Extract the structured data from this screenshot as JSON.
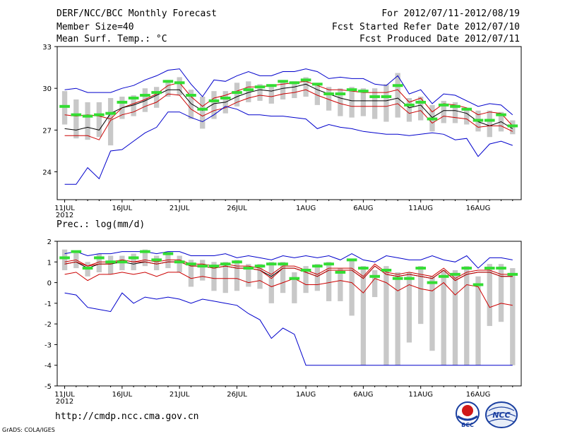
{
  "header": {
    "title": "DERF/NCC/BCC Monthly Forecast",
    "member_size": "Member Size=40",
    "variable": "Mean Surf. Temp.: °C",
    "period": "For 2012/07/11-2012/08/19",
    "started": "Fcst Started Refer Date 2012/07/10",
    "produced": "Fcst Produced Date 2012/07/11"
  },
  "footer": {
    "url": "http://cmdp.ncc.cma.gov.cn",
    "grads": "GrADS: COLA/IGES",
    "logo_bcc": "BCC",
    "logo_ncc": "NCC"
  },
  "colors": {
    "max_min": "#0000cc",
    "spread": "#cc0000",
    "mean": "#000000",
    "median": "#33dd33",
    "box": "#c8c8c8"
  },
  "chart_data": [
    {
      "type": "line",
      "title": "Mean Surf. Temp.: °C",
      "ylabel": "°C",
      "ylim": [
        22,
        33
      ],
      "yticks": [
        24,
        27,
        30,
        33
      ],
      "xtick_labels": [
        "11JUL",
        "16JUL",
        "21JUL",
        "26JUL",
        "1AUG",
        "6AUG",
        "11AUG",
        "16AUG"
      ],
      "xtick_days": [
        1,
        6,
        11,
        16,
        22,
        27,
        32,
        37
      ],
      "xtick_sublabel": "2012",
      "days": 40,
      "series": [
        {
          "name": "max",
          "values": [
            29.9,
            30.0,
            29.7,
            29.7,
            29.7,
            30.0,
            30.2,
            30.6,
            30.9,
            31.3,
            31.4,
            30.3,
            29.4,
            30.6,
            30.5,
            30.9,
            31.2,
            30.9,
            30.9,
            31.2,
            31.2,
            31.4,
            31.2,
            30.7,
            30.8,
            30.7,
            30.7,
            30.3,
            30.2,
            30.9,
            29.6,
            29.9,
            28.9,
            29.6,
            29.5,
            29.1,
            28.7,
            28.9,
            28.8,
            28.1
          ]
        },
        {
          "name": "upper",
          "values": [
            28.1,
            28.0,
            28.1,
            28.0,
            27.8,
            28.6,
            28.9,
            29.2,
            29.6,
            30.2,
            30.4,
            29.4,
            28.7,
            29.3,
            29.5,
            29.8,
            30.1,
            30.1,
            30.2,
            30.3,
            30.4,
            30.5,
            30.2,
            29.9,
            29.9,
            29.8,
            29.7,
            29.7,
            29.7,
            29.9,
            29.0,
            29.3,
            28.3,
            28.9,
            28.8,
            28.6,
            28.1,
            28.3,
            28.2,
            27.3
          ]
        },
        {
          "name": "mean",
          "values": [
            27.1,
            27.0,
            27.2,
            27.0,
            28.2,
            28.6,
            28.8,
            29.1,
            29.5,
            29.9,
            29.9,
            28.9,
            28.4,
            28.9,
            29.0,
            29.4,
            29.7,
            29.9,
            29.8,
            30.0,
            30.1,
            30.3,
            29.9,
            29.6,
            29.3,
            29.1,
            29.1,
            29.1,
            29.1,
            29.3,
            28.6,
            28.8,
            27.9,
            28.4,
            28.4,
            28.2,
            27.6,
            27.3,
            27.6,
            27.1
          ]
        },
        {
          "name": "lower",
          "values": [
            26.6,
            26.6,
            26.6,
            26.3,
            27.7,
            28.1,
            28.3,
            28.7,
            29.0,
            29.6,
            29.5,
            28.5,
            28.0,
            28.4,
            28.6,
            29.0,
            29.3,
            29.5,
            29.4,
            29.6,
            29.7,
            29.9,
            29.5,
            29.2,
            28.9,
            28.7,
            28.7,
            28.7,
            28.7,
            28.9,
            28.2,
            28.4,
            27.5,
            28.0,
            27.9,
            27.8,
            27.2,
            27.3,
            27.3,
            26.9
          ]
        },
        {
          "name": "min",
          "values": [
            23.1,
            23.1,
            24.3,
            23.5,
            25.5,
            25.6,
            26.2,
            26.8,
            27.2,
            28.3,
            28.3,
            27.9,
            27.6,
            28.1,
            28.7,
            28.5,
            28.1,
            28.1,
            28.0,
            28.0,
            27.9,
            27.8,
            27.1,
            27.4,
            27.2,
            27.1,
            26.9,
            26.8,
            26.7,
            26.7,
            26.6,
            26.7,
            26.8,
            26.7,
            26.3,
            26.4,
            25.1,
            26.0,
            26.2,
            25.9
          ]
        },
        {
          "name": "median",
          "values": [
            28.7,
            28.1,
            28.0,
            28.1,
            28.2,
            29.0,
            29.3,
            29.5,
            29.7,
            30.5,
            30.4,
            29.5,
            28.5,
            29.1,
            29.3,
            29.7,
            29.9,
            30.1,
            30.2,
            30.5,
            30.4,
            30.6,
            30.3,
            29.6,
            29.6,
            29.9,
            29.8,
            29.4,
            29.4,
            30.2,
            28.8,
            29.0,
            27.8,
            28.8,
            28.7,
            28.5,
            27.7,
            27.7,
            28.1,
            27.3
          ]
        }
      ],
      "boxes": {
        "top": [
          29.8,
          29.2,
          29.0,
          29.0,
          29.3,
          29.4,
          29.5,
          30.0,
          30.1,
          30.6,
          30.8,
          29.9,
          29.4,
          29.8,
          29.8,
          30.4,
          30.5,
          30.3,
          30.3,
          30.6,
          30.5,
          30.8,
          30.3,
          30.1,
          30.0,
          30.1,
          30.0,
          30.0,
          30.3,
          31.1,
          29.3,
          29.4,
          28.8,
          29.1,
          29.0,
          28.6,
          28.4,
          28.4,
          28.3,
          27.7
        ],
        "bottom": [
          27.4,
          26.4,
          26.3,
          26.5,
          25.9,
          27.8,
          28.0,
          28.3,
          28.6,
          29.4,
          29.5,
          27.8,
          27.1,
          27.8,
          28.2,
          28.7,
          29.0,
          29.1,
          28.9,
          29.2,
          29.3,
          29.4,
          28.8,
          28.4,
          28.0,
          27.9,
          28.0,
          27.8,
          27.6,
          27.9,
          27.6,
          27.7,
          26.9,
          27.5,
          27.5,
          27.4,
          26.9,
          26.5,
          26.9,
          26.7
        ]
      }
    },
    {
      "type": "line",
      "title": "Prec.: log(mm/d)",
      "ylabel": "log(mm/d)",
      "ylim": [
        -5,
        2
      ],
      "yticks": [
        2,
        1,
        0,
        -1,
        -2,
        -3,
        -4,
        -5
      ],
      "xtick_labels": [
        "11JUL",
        "16JUL",
        "21JUL",
        "26JUL",
        "1AUG",
        "6AUG",
        "11AUG",
        "16AUG"
      ],
      "xtick_days": [
        1,
        6,
        11,
        16,
        22,
        27,
        32,
        37
      ],
      "xtick_sublabel": "2012",
      "days": 40,
      "series": [
        {
          "name": "max",
          "values": [
            1.4,
            1.5,
            1.3,
            1.4,
            1.4,
            1.5,
            1.5,
            1.5,
            1.4,
            1.5,
            1.5,
            1.3,
            1.3,
            1.3,
            1.4,
            1.2,
            1.3,
            1.2,
            1.1,
            1.3,
            1.2,
            1.3,
            1.2,
            1.3,
            1.1,
            1.4,
            1.1,
            1.0,
            1.3,
            1.2,
            1.1,
            1.1,
            1.3,
            1.1,
            1.0,
            1.3,
            0.7,
            1.2,
            1.2,
            1.1
          ]
        },
        {
          "name": "upper",
          "values": [
            1.0,
            1.1,
            0.8,
            1.0,
            1.0,
            1.1,
            1.0,
            1.1,
            1.0,
            1.1,
            1.1,
            0.9,
            0.9,
            0.8,
            0.9,
            0.8,
            0.8,
            0.7,
            0.4,
            0.8,
            0.8,
            0.6,
            0.4,
            0.7,
            0.7,
            0.7,
            0.3,
            0.9,
            0.5,
            0.4,
            0.5,
            0.4,
            0.3,
            0.7,
            0.2,
            0.5,
            0.6,
            0.6,
            0.4,
            0.4
          ]
        },
        {
          "name": "mean",
          "values": [
            0.9,
            1.0,
            0.7,
            0.9,
            0.9,
            1.0,
            0.9,
            1.0,
            0.9,
            1.0,
            1.0,
            0.8,
            0.8,
            0.7,
            0.8,
            0.7,
            0.7,
            0.6,
            0.3,
            0.7,
            0.7,
            0.5,
            0.3,
            0.6,
            0.6,
            0.6,
            0.2,
            0.8,
            0.4,
            0.3,
            0.4,
            0.3,
            0.2,
            0.6,
            0.1,
            0.4,
            0.5,
            0.5,
            0.3,
            0.3
          ]
        },
        {
          "name": "lower",
          "values": [
            0.4,
            0.5,
            0.1,
            0.4,
            0.4,
            0.5,
            0.4,
            0.5,
            0.3,
            0.5,
            0.5,
            0.2,
            0.3,
            0.2,
            0.2,
            0.2,
            0.0,
            0.1,
            -0.2,
            0.0,
            0.2,
            -0.1,
            -0.1,
            0.0,
            0.1,
            0.0,
            -0.5,
            0.2,
            0.0,
            -0.4,
            -0.1,
            -0.3,
            -0.4,
            0.0,
            -0.6,
            -0.1,
            -0.2,
            -1.2,
            -1.0,
            -1.1
          ]
        },
        {
          "name": "min",
          "values": [
            -0.5,
            -0.6,
            -1.2,
            -1.3,
            -1.4,
            -0.5,
            -1.0,
            -0.7,
            -0.8,
            -0.7,
            -0.8,
            -1.0,
            -0.8,
            -0.9,
            -1.0,
            -1.1,
            -1.5,
            -1.8,
            -2.7,
            -2.2,
            -2.5,
            -4.0,
            -4.0,
            -4.0,
            -4.0,
            -4.0,
            -4.0,
            -4.0,
            -4.0,
            -4.0,
            -4.0,
            -4.0,
            -4.0,
            -4.0,
            -4.0,
            -4.0,
            -4.0,
            -4.0,
            -4.0,
            -4.0
          ]
        },
        {
          "name": "median",
          "values": [
            1.2,
            1.5,
            0.7,
            1.2,
            1.0,
            1.0,
            1.2,
            1.5,
            1.1,
            1.4,
            1.0,
            0.9,
            0.8,
            0.8,
            0.9,
            1.0,
            0.7,
            0.8,
            0.9,
            0.9,
            0.2,
            0.6,
            0.8,
            0.9,
            0.5,
            1.1,
            0.7,
            0.3,
            0.6,
            0.2,
            0.2,
            0.7,
            0.0,
            0.3,
            0.4,
            0.7,
            -0.1,
            0.7,
            0.7,
            0.4
          ]
        },
        {
          "name": "ensemble-mean",
          "values": [
            0.9,
            1.0,
            0.8,
            0.9,
            0.9,
            1.1,
            1.0,
            1.0,
            0.9,
            1.0,
            1.0,
            0.8,
            0.8,
            0.7,
            0.8,
            0.7,
            0.7,
            0.6,
            0.2,
            0.7,
            0.7,
            0.5,
            0.3,
            0.6,
            0.6,
            0.6,
            0.2,
            0.8,
            0.4,
            0.3,
            0.4,
            0.3,
            0.2,
            0.6,
            0.1,
            0.4,
            0.5,
            0.5,
            0.3,
            0.3
          ]
        }
      ],
      "boxes": {
        "top": [
          1.6,
          1.5,
          1.0,
          1.4,
          1.3,
          1.3,
          1.4,
          1.6,
          1.3,
          1.5,
          1.3,
          1.1,
          1.1,
          1.0,
          1.0,
          1.1,
          0.9,
          0.9,
          1.0,
          1.0,
          0.5,
          0.8,
          0.9,
          1.0,
          0.7,
          1.1,
          0.8,
          0.6,
          0.8,
          0.5,
          0.5,
          0.8,
          0.3,
          0.6,
          0.6,
          0.8,
          0.3,
          0.9,
          0.9,
          0.7
        ],
        "bottom": [
          0.6,
          0.7,
          0.3,
          0.5,
          0.4,
          0.6,
          0.6,
          0.8,
          0.6,
          0.7,
          0.5,
          -0.2,
          0.1,
          -0.4,
          -0.5,
          -0.4,
          -0.2,
          -0.3,
          -1.0,
          -0.5,
          -1.0,
          -0.5,
          -0.4,
          -0.9,
          -0.9,
          -1.6,
          -4.0,
          -0.7,
          -4.0,
          -4.0,
          -2.9,
          -2.0,
          -3.3,
          -4.0,
          -4.0,
          -4.0,
          -4.0,
          -2.1,
          -1.9,
          -4.0
        ]
      }
    }
  ]
}
